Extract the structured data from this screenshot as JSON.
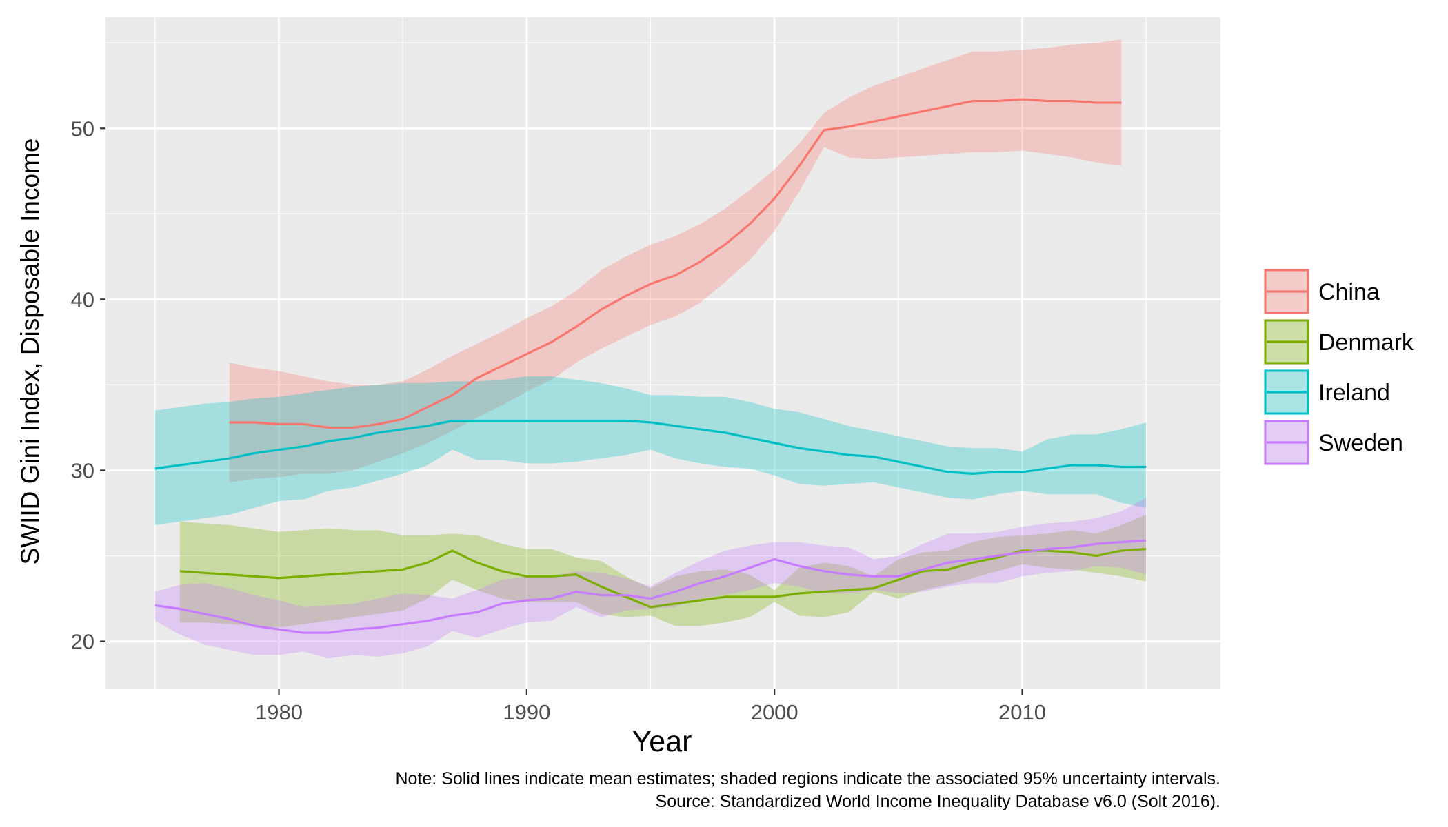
{
  "chart_data": {
    "type": "line",
    "xlabel": "Year",
    "ylabel": "SWIID Gini Index, Disposable Income",
    "xlim": [
      1973,
      2018
    ],
    "ylim": [
      17.2,
      56.5
    ],
    "x_ticks": [
      1980,
      1990,
      2000,
      2010
    ],
    "y_ticks": [
      20,
      30,
      40,
      50
    ],
    "grid": true,
    "panel_background": "#ebebeb",
    "band_opacity": 0.3,
    "legend_position": "right",
    "series": [
      {
        "name": "China",
        "color": "#F8766D",
        "x": [
          1978,
          1979,
          1980,
          1981,
          1982,
          1983,
          1984,
          1985,
          1986,
          1987,
          1988,
          1989,
          1990,
          1991,
          1992,
          1993,
          1994,
          1995,
          1996,
          1997,
          1998,
          1999,
          2000,
          2001,
          2002,
          2003,
          2004,
          2005,
          2006,
          2007,
          2008,
          2009,
          2010,
          2011,
          2012,
          2013,
          2014
        ],
        "mean": [
          32.8,
          32.8,
          32.7,
          32.7,
          32.5,
          32.5,
          32.7,
          33.0,
          33.7,
          34.4,
          35.4,
          36.1,
          36.8,
          37.5,
          38.4,
          39.4,
          40.2,
          40.9,
          41.4,
          42.2,
          43.2,
          44.4,
          45.9,
          47.8,
          49.9,
          50.1,
          50.4,
          50.7,
          51.0,
          51.3,
          51.6,
          51.6,
          51.7,
          51.6,
          51.6,
          51.5,
          51.5
        ],
        "lower": [
          29.3,
          29.5,
          29.6,
          29.8,
          29.8,
          30.0,
          30.5,
          31.0,
          31.6,
          32.3,
          33.1,
          33.8,
          34.6,
          35.3,
          36.3,
          37.1,
          37.8,
          38.5,
          39.0,
          39.8,
          41.0,
          42.3,
          44.0,
          46.3,
          48.9,
          48.3,
          48.2,
          48.3,
          48.4,
          48.5,
          48.6,
          48.6,
          48.7,
          48.5,
          48.3,
          48.0,
          47.8
        ],
        "upper": [
          36.3,
          36.0,
          35.8,
          35.5,
          35.2,
          35.0,
          35.0,
          35.2,
          35.9,
          36.7,
          37.4,
          38.1,
          38.9,
          39.6,
          40.5,
          41.7,
          42.5,
          43.2,
          43.7,
          44.4,
          45.3,
          46.4,
          47.6,
          49.1,
          50.9,
          51.8,
          52.5,
          53.0,
          53.5,
          54.0,
          54.5,
          54.5,
          54.6,
          54.7,
          54.9,
          55.0,
          55.2
        ]
      },
      {
        "name": "Denmark",
        "color": "#7CAE00",
        "x": [
          1976,
          1977,
          1978,
          1979,
          1980,
          1981,
          1982,
          1983,
          1984,
          1985,
          1986,
          1987,
          1988,
          1989,
          1990,
          1991,
          1992,
          1993,
          1994,
          1995,
          1996,
          1997,
          1998,
          1999,
          2000,
          2001,
          2002,
          2003,
          2004,
          2005,
          2006,
          2007,
          2008,
          2009,
          2010,
          2011,
          2012,
          2013,
          2014,
          2015
        ],
        "mean": [
          24.1,
          24.0,
          23.9,
          23.8,
          23.7,
          23.8,
          23.9,
          24.0,
          24.1,
          24.2,
          24.6,
          25.3,
          24.6,
          24.1,
          23.8,
          23.8,
          23.9,
          23.2,
          22.6,
          22.0,
          22.2,
          22.4,
          22.6,
          22.6,
          22.6,
          22.8,
          22.9,
          23.0,
          23.1,
          23.6,
          24.1,
          24.2,
          24.6,
          24.9,
          25.3,
          25.3,
          25.2,
          25.0,
          25.3,
          25.4
        ],
        "lower": [
          21.1,
          21.1,
          21.0,
          20.9,
          20.8,
          21.0,
          21.2,
          21.4,
          21.6,
          21.8,
          22.5,
          23.6,
          23.0,
          22.5,
          22.3,
          22.3,
          22.3,
          21.6,
          21.4,
          21.5,
          20.9,
          20.9,
          21.1,
          21.4,
          22.3,
          21.5,
          21.4,
          21.7,
          22.9,
          22.5,
          23.0,
          23.3,
          23.7,
          24.1,
          24.5,
          24.3,
          24.2,
          24.0,
          23.8,
          23.5
        ],
        "upper": [
          27.0,
          26.9,
          26.8,
          26.6,
          26.4,
          26.5,
          26.6,
          26.5,
          26.5,
          26.2,
          26.2,
          26.3,
          26.2,
          25.7,
          25.4,
          25.4,
          24.9,
          24.7,
          23.8,
          23.1,
          23.8,
          24.1,
          24.2,
          23.9,
          23.0,
          24.3,
          24.6,
          24.4,
          23.8,
          24.8,
          25.2,
          25.3,
          25.8,
          26.1,
          26.2,
          26.3,
          26.5,
          26.3,
          26.8,
          27.4
        ]
      },
      {
        "name": "Ireland",
        "color": "#00BFC4",
        "x": [
          1975,
          1976,
          1977,
          1978,
          1979,
          1980,
          1981,
          1982,
          1983,
          1984,
          1985,
          1986,
          1987,
          1988,
          1989,
          1990,
          1991,
          1992,
          1993,
          1994,
          1995,
          1996,
          1997,
          1998,
          1999,
          2000,
          2001,
          2002,
          2003,
          2004,
          2005,
          2006,
          2007,
          2008,
          2009,
          2010,
          2011,
          2012,
          2013,
          2014,
          2015
        ],
        "mean": [
          30.1,
          30.3,
          30.5,
          30.7,
          31.0,
          31.2,
          31.4,
          31.7,
          31.9,
          32.2,
          32.4,
          32.6,
          32.9,
          32.9,
          32.9,
          32.9,
          32.9,
          32.9,
          32.9,
          32.9,
          32.8,
          32.6,
          32.4,
          32.2,
          31.9,
          31.6,
          31.3,
          31.1,
          30.9,
          30.8,
          30.5,
          30.2,
          29.9,
          29.8,
          29.9,
          29.9,
          30.1,
          30.3,
          30.3,
          30.2,
          30.2
        ],
        "lower": [
          26.8,
          27.0,
          27.2,
          27.4,
          27.8,
          28.2,
          28.3,
          28.8,
          29.0,
          29.4,
          29.8,
          30.3,
          31.2,
          30.6,
          30.6,
          30.4,
          30.4,
          30.5,
          30.7,
          30.9,
          31.2,
          30.7,
          30.4,
          30.2,
          30.1,
          29.7,
          29.2,
          29.1,
          29.2,
          29.3,
          29.0,
          28.7,
          28.4,
          28.3,
          28.6,
          28.8,
          28.6,
          28.6,
          28.6,
          28.1,
          27.8
        ],
        "upper": [
          33.5,
          33.7,
          33.9,
          34.0,
          34.2,
          34.3,
          34.5,
          34.7,
          34.9,
          35.0,
          35.1,
          35.1,
          35.2,
          35.2,
          35.3,
          35.5,
          35.5,
          35.3,
          35.1,
          34.8,
          34.4,
          34.4,
          34.3,
          34.3,
          34.0,
          33.6,
          33.4,
          33.0,
          32.6,
          32.3,
          32.0,
          31.7,
          31.4,
          31.3,
          31.3,
          31.1,
          31.8,
          32.1,
          32.1,
          32.4,
          32.8
        ]
      },
      {
        "name": "Sweden",
        "color": "#C77CFF",
        "x": [
          1975,
          1976,
          1977,
          1978,
          1979,
          1980,
          1981,
          1982,
          1983,
          1984,
          1985,
          1986,
          1987,
          1988,
          1989,
          1990,
          1991,
          1992,
          1993,
          1994,
          1995,
          1996,
          1997,
          1998,
          1999,
          2000,
          2001,
          2002,
          2003,
          2004,
          2005,
          2006,
          2007,
          2008,
          2009,
          2010,
          2011,
          2012,
          2013,
          2014,
          2015
        ],
        "mean": [
          22.1,
          21.9,
          21.6,
          21.3,
          20.9,
          20.7,
          20.5,
          20.5,
          20.7,
          20.8,
          21.0,
          21.2,
          21.5,
          21.7,
          22.2,
          22.4,
          22.5,
          22.9,
          22.7,
          22.7,
          22.5,
          22.9,
          23.4,
          23.8,
          24.3,
          24.8,
          24.4,
          24.1,
          23.9,
          23.8,
          23.8,
          24.2,
          24.6,
          24.8,
          25.0,
          25.2,
          25.4,
          25.5,
          25.7,
          25.8,
          25.9
        ],
        "lower": [
          21.2,
          20.4,
          19.8,
          19.5,
          19.2,
          19.2,
          19.4,
          19.0,
          19.2,
          19.1,
          19.3,
          19.7,
          20.6,
          20.2,
          20.7,
          21.1,
          21.2,
          22.0,
          21.4,
          21.8,
          21.9,
          22.0,
          22.5,
          22.7,
          23.0,
          23.4,
          23.2,
          22.8,
          22.8,
          23.0,
          22.8,
          22.9,
          23.2,
          23.4,
          23.4,
          23.8,
          24.0,
          24.1,
          24.4,
          24.3,
          23.9
        ],
        "upper": [
          22.9,
          23.3,
          23.4,
          23.1,
          22.7,
          22.4,
          22.0,
          22.1,
          22.2,
          22.5,
          22.8,
          22.7,
          22.5,
          23.0,
          23.6,
          23.8,
          23.8,
          24.1,
          24.0,
          23.7,
          23.2,
          24.0,
          24.7,
          25.3,
          25.6,
          25.8,
          25.8,
          25.6,
          25.5,
          24.8,
          25.0,
          25.7,
          26.3,
          26.3,
          26.4,
          26.7,
          26.9,
          27.0,
          27.2,
          27.6,
          28.4
        ]
      }
    ],
    "caption": [
      "Note: Solid lines indicate mean estimates; shaded regions indicate the associated 95% uncertainty intervals.",
      "Source: Standardized World Income Inequality Database v6.0 (Solt 2016)."
    ]
  }
}
